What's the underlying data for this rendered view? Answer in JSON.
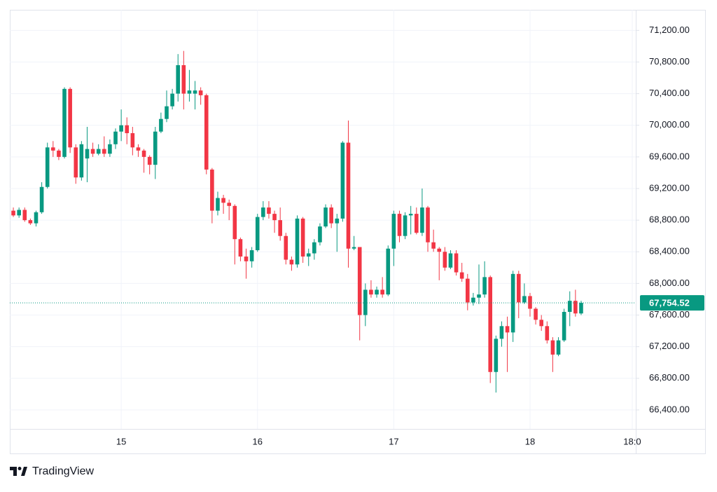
{
  "chart_data": {
    "type": "candlestick",
    "categories": [
      null,
      null,
      null,
      null,
      null,
      null,
      null,
      null,
      null,
      null,
      null,
      null,
      null,
      null,
      null,
      null,
      null,
      null,
      null,
      "15",
      null,
      null,
      null,
      null,
      null,
      null,
      null,
      null,
      null,
      null,
      null,
      null,
      null,
      null,
      null,
      null,
      null,
      null,
      null,
      null,
      null,
      null,
      null,
      "16",
      null,
      null,
      null,
      null,
      null,
      null,
      null,
      null,
      null,
      null,
      null,
      null,
      null,
      null,
      null,
      null,
      null,
      null,
      null,
      null,
      null,
      null,
      null,
      "17",
      null,
      null,
      null,
      null,
      null,
      null,
      null,
      null,
      null,
      null,
      null,
      null,
      null,
      null,
      null,
      null,
      null,
      null,
      null,
      null,
      null,
      null,
      null,
      "18",
      null,
      null,
      null,
      null,
      null,
      null,
      null,
      null,
      null,
      null,
      null,
      null,
      null,
      null,
      null,
      null,
      null,
      "18:0"
    ],
    "open": [
      68920,
      68860,
      68930,
      68800,
      68760,
      68900,
      69220,
      69720,
      69680,
      69600,
      70460,
      69720,
      69340,
      69580,
      69700,
      69640,
      69700,
      69640,
      69760,
      69920,
      70000,
      69900,
      69720,
      69680,
      69600,
      69500,
      69920,
      70080,
      70240,
      70400,
      70760,
      70400,
      70400,
      70440,
      70380,
      69440,
      68920,
      69080,
      69020,
      68980,
      68560,
      68340,
      68280,
      68420,
      68840,
      68960,
      68880,
      68800,
      68600,
      68300,
      68240,
      68820,
      68340,
      68380,
      68520,
      68720,
      68960,
      68760,
      68820,
      69780,
      68440,
      68460,
      67600,
      67920,
      67860,
      67920,
      67860,
      68440,
      68880,
      68600,
      68860,
      68880,
      68640,
      68960,
      68520,
      68440,
      68400,
      68200,
      68380,
      68140,
      68060,
      67760,
      67820,
      67860,
      68080,
      66880,
      67300,
      67460,
      67380,
      68120,
      67760,
      67840,
      67680,
      67540,
      67460,
      67280,
      67100,
      67280,
      67640,
      67780,
      67620,
      null,
      null,
      null,
      null,
      null,
      null,
      null,
      null,
      null
    ],
    "high": [
      68960,
      68960,
      68960,
      68820,
      68920,
      69280,
      69780,
      69800,
      69700,
      70480,
      70480,
      69760,
      69800,
      69980,
      69780,
      69760,
      69860,
      69820,
      69960,
      70200,
      70100,
      69980,
      69760,
      69700,
      69620,
      69980,
      70160,
      70440,
      70460,
      70900,
      70940,
      70700,
      70560,
      70480,
      70400,
      69460,
      69160,
      69120,
      69060,
      69000,
      68580,
      68440,
      68460,
      68880,
      69040,
      69040,
      68920,
      68960,
      68640,
      68340,
      68860,
      68840,
      68440,
      68560,
      68760,
      69000,
      69000,
      68880,
      69800,
      70060,
      68600,
      68460,
      68000,
      68040,
      67960,
      68080,
      68480,
      68920,
      68920,
      68900,
      68980,
      68960,
      69200,
      68980,
      68680,
      68460,
      68460,
      68420,
      68420,
      68260,
      68120,
      67880,
      68240,
      68280,
      68100,
      67340,
      67520,
      67580,
      68160,
      68160,
      68000,
      67880,
      67700,
      67600,
      67520,
      67320,
      67320,
      67680,
      67900,
      67920,
      67780,
      null,
      null,
      null,
      null,
      null,
      null,
      null,
      null,
      null
    ],
    "low": [
      68840,
      68830,
      68780,
      68740,
      68720,
      68880,
      69200,
      69600,
      69560,
      69580,
      69650,
      69260,
      69300,
      69280,
      69600,
      69620,
      69600,
      69600,
      69700,
      69800,
      69760,
      69620,
      69600,
      69400,
      69380,
      69320,
      69900,
      70040,
      70200,
      70300,
      70200,
      70300,
      70200,
      70260,
      69380,
      68760,
      68860,
      68880,
      68800,
      68240,
      68280,
      68060,
      68200,
      68400,
      68800,
      68820,
      68640,
      68540,
      68240,
      68160,
      68200,
      68260,
      68220,
      68300,
      68480,
      68700,
      68700,
      68400,
      68780,
      68200,
      68420,
      67280,
      67460,
      67820,
      67820,
      67820,
      67840,
      68220,
      68520,
      68560,
      68620,
      68620,
      68600,
      68400,
      68400,
      68040,
      68160,
      68180,
      68100,
      68020,
      67660,
      67720,
      67740,
      67820,
      66740,
      66620,
      67200,
      66880,
      67260,
      67560,
      67740,
      67580,
      67480,
      67400,
      67240,
      66880,
      67080,
      67260,
      67460,
      67580,
      67600,
      null,
      null,
      null,
      null,
      null,
      null,
      null,
      null,
      null
    ],
    "close": [
      68860,
      68930,
      68800,
      68760,
      68900,
      69220,
      69720,
      69680,
      69600,
      70460,
      69720,
      69340,
      69760,
      69700,
      69640,
      69700,
      69640,
      69760,
      69920,
      70000,
      69900,
      69720,
      69680,
      69600,
      69500,
      69920,
      70080,
      70240,
      70400,
      70760,
      70400,
      70440,
      70440,
      70380,
      69440,
      68920,
      69080,
      69020,
      68980,
      68560,
      68340,
      68280,
      68420,
      68840,
      68960,
      68880,
      68800,
      68600,
      68300,
      68240,
      68820,
      68340,
      68380,
      68520,
      68720,
      68960,
      68760,
      68820,
      69780,
      68440,
      68460,
      67600,
      67920,
      67860,
      67920,
      67860,
      68440,
      68880,
      68600,
      68860,
      68880,
      68640,
      68960,
      68520,
      68440,
      68400,
      68200,
      68380,
      68140,
      68060,
      67760,
      67820,
      67860,
      68080,
      66880,
      67300,
      67460,
      67380,
      68120,
      67760,
      67840,
      67680,
      67540,
      67460,
      67280,
      67100,
      67280,
      67640,
      67780,
      67620,
      67754.52,
      null,
      null,
      null,
      null,
      null,
      null,
      null,
      null,
      null
    ],
    "up_color": "#089981",
    "down_color": "#f23645",
    "ylim": [
      66160,
      71460
    ],
    "yticks": [
      {
        "value": 66400,
        "label": "66,400.00"
      },
      {
        "value": 66800,
        "label": "66,800.00"
      },
      {
        "value": 67200,
        "label": "67,200.00"
      },
      {
        "value": 67600,
        "label": "67,600.00"
      },
      {
        "value": 68000,
        "label": "68,000.00"
      },
      {
        "value": 68400,
        "label": "68,400.00"
      },
      {
        "value": 68800,
        "label": "68,800.00"
      },
      {
        "value": 69200,
        "label": "69,200.00"
      },
      {
        "value": 69600,
        "label": "69,600.00"
      },
      {
        "value": 70000,
        "label": "70,000.00"
      },
      {
        "value": 70400,
        "label": "70,400.00"
      },
      {
        "value": 70800,
        "label": "70,800.00"
      },
      {
        "value": 71200,
        "label": "71,200.00"
      }
    ],
    "grid": true,
    "price_line": {
      "value": 67754.52,
      "label": "67,754.52",
      "color": "#089981"
    }
  },
  "footer": {
    "brand": "TradingView"
  }
}
